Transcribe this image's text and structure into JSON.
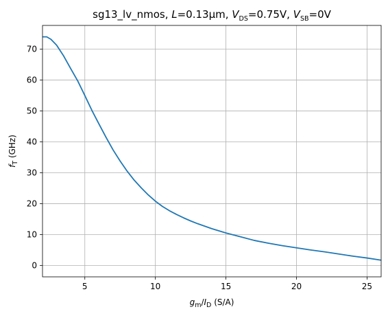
{
  "chart_data": {
    "type": "line",
    "title": {
      "prefix": "sg13_lv_nmos, ",
      "L_var": "L",
      "L_value": "=0.13µm, ",
      "VDS_var": "V",
      "VDS_sub": "DS",
      "VDS_value": "=0.75V, ",
      "VSB_var": "V",
      "VSB_sub": "SB",
      "VSB_value": "=0V"
    },
    "xlabel": {
      "g_var": "g",
      "g_sub": "m",
      "slash": "/",
      "I_var": "I",
      "I_sub": "D",
      "unit": " (S/A)"
    },
    "ylabel": {
      "f_var": "f",
      "f_sub": "T",
      "unit": " (GHz)"
    },
    "xlim": [
      2,
      26
    ],
    "ylim": [
      -3.7,
      77.7
    ],
    "xticks": [
      5,
      10,
      15,
      20,
      25
    ],
    "yticks": [
      0,
      10,
      20,
      30,
      40,
      50,
      60,
      70
    ],
    "grid": true,
    "line_color": "#1f77b4",
    "series": [
      {
        "x": [
          2.0,
          2.3,
          2.6,
          3.0,
          3.5,
          4.0,
          4.5,
          5.0,
          5.5,
          6.0,
          6.5,
          7.0,
          7.5,
          8.0,
          8.5,
          9.0,
          9.5,
          10.0,
          10.5,
          11.0,
          11.5,
          12.0,
          12.5,
          13.0,
          13.5,
          14.0,
          14.5,
          15.0,
          16.0,
          17.0,
          18.0,
          19.0,
          20.0,
          21.0,
          22.0,
          23.0,
          24.0,
          25.0,
          26.0
        ],
        "y": [
          74.0,
          74.0,
          73.2,
          71.3,
          67.8,
          63.7,
          59.7,
          55.0,
          50.2,
          45.8,
          41.5,
          37.4,
          33.8,
          30.5,
          27.6,
          25.1,
          22.8,
          20.8,
          19.1,
          17.7,
          16.5,
          15.4,
          14.4,
          13.5,
          12.7,
          11.9,
          11.2,
          10.5,
          9.3,
          8.1,
          7.2,
          6.4,
          5.7,
          5.0,
          4.4,
          3.7,
          3.0,
          2.4,
          1.7
        ]
      }
    ]
  }
}
